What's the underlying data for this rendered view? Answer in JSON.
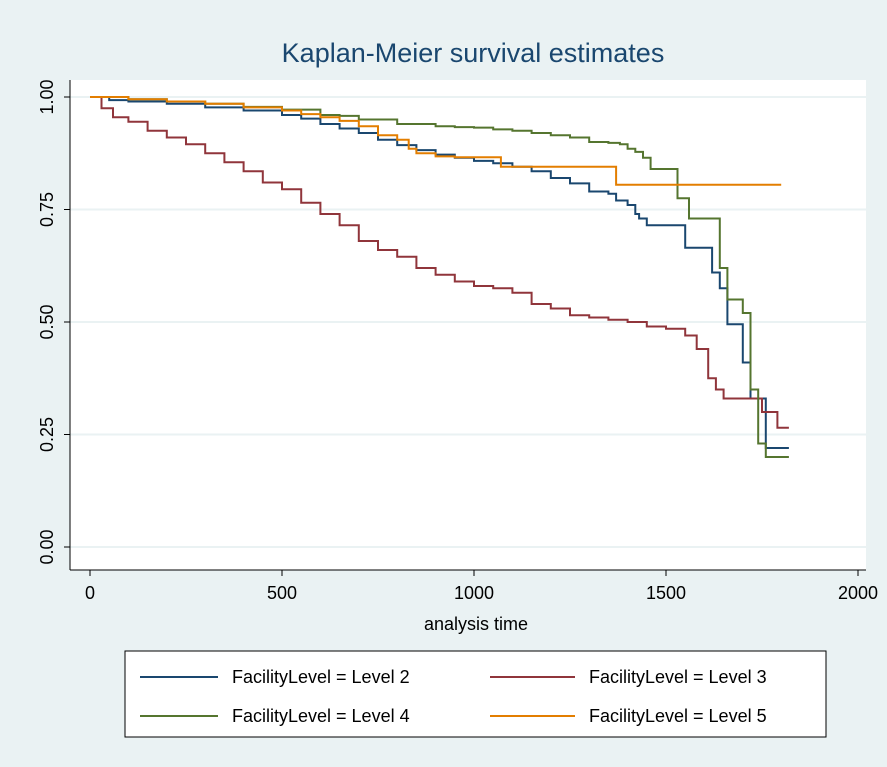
{
  "chart_data": {
    "type": "line",
    "subtype": "step",
    "title": "Kaplan-Meier survival estimates",
    "xlabel": "analysis time",
    "ylabel": "",
    "xlim": [
      0,
      2000
    ],
    "ylim": [
      0,
      1
    ],
    "xticks": [
      0,
      500,
      1000,
      1500,
      2000
    ],
    "xtick_labels": [
      "0",
      "500",
      "1000",
      "1500",
      "2000"
    ],
    "yticks": [
      0,
      0.25,
      0.5,
      0.75,
      1
    ],
    "ytick_labels": [
      "0.00",
      "0.25",
      "0.50",
      "0.75",
      "1.00"
    ],
    "grid": "horizontal",
    "legend_position": "bottom",
    "colors": {
      "background": "#eaf2f3",
      "plot_bg": "#ffffff",
      "gridline": "#eaf2f3"
    },
    "series": [
      {
        "name": "FacilityLevel = Level 2",
        "color": "#1a476f",
        "x": [
          0,
          50,
          100,
          200,
          300,
          400,
          500,
          550,
          600,
          650,
          700,
          750,
          800,
          850,
          900,
          950,
          1000,
          1050,
          1100,
          1150,
          1200,
          1250,
          1300,
          1350,
          1370,
          1400,
          1420,
          1430,
          1450,
          1500,
          1550,
          1600,
          1620,
          1640,
          1660,
          1680,
          1700,
          1720,
          1740,
          1760,
          1780,
          1820
        ],
        "y": [
          1.0,
          0.993,
          0.99,
          0.985,
          0.977,
          0.97,
          0.96,
          0.952,
          0.94,
          0.93,
          0.92,
          0.905,
          0.893,
          0.882,
          0.872,
          0.865,
          0.858,
          0.853,
          0.845,
          0.835,
          0.82,
          0.808,
          0.79,
          0.785,
          0.77,
          0.76,
          0.74,
          0.73,
          0.715,
          0.715,
          0.665,
          0.665,
          0.61,
          0.575,
          0.495,
          0.495,
          0.41,
          0.33,
          0.33,
          0.22,
          0.22,
          0.22
        ]
      },
      {
        "name": "FacilityLevel = Level 3",
        "color": "#90353b",
        "x": [
          0,
          30,
          60,
          100,
          150,
          200,
          250,
          300,
          350,
          400,
          450,
          500,
          550,
          600,
          650,
          700,
          750,
          800,
          850,
          900,
          950,
          1000,
          1050,
          1100,
          1150,
          1200,
          1250,
          1300,
          1350,
          1400,
          1450,
          1500,
          1550,
          1580,
          1600,
          1610,
          1630,
          1650,
          1700,
          1720,
          1750,
          1790,
          1820
        ],
        "y": [
          1.0,
          0.975,
          0.955,
          0.945,
          0.925,
          0.91,
          0.895,
          0.875,
          0.855,
          0.835,
          0.81,
          0.795,
          0.765,
          0.74,
          0.715,
          0.68,
          0.66,
          0.645,
          0.62,
          0.605,
          0.59,
          0.58,
          0.575,
          0.565,
          0.54,
          0.53,
          0.515,
          0.51,
          0.505,
          0.5,
          0.49,
          0.485,
          0.47,
          0.44,
          0.44,
          0.375,
          0.35,
          0.33,
          0.33,
          0.33,
          0.3,
          0.265,
          0.265
        ]
      },
      {
        "name": "FacilityLevel = Level 4",
        "color": "#55752f",
        "x": [
          0,
          100,
          200,
          300,
          400,
          500,
          600,
          650,
          700,
          800,
          850,
          900,
          950,
          1000,
          1050,
          1100,
          1150,
          1200,
          1250,
          1300,
          1350,
          1380,
          1400,
          1420,
          1440,
          1460,
          1480,
          1500,
          1510,
          1520,
          1530,
          1560,
          1600,
          1620,
          1640,
          1660,
          1680,
          1700,
          1720,
          1740,
          1760,
          1820
        ],
        "y": [
          1.0,
          0.995,
          0.99,
          0.985,
          0.978,
          0.972,
          0.96,
          0.958,
          0.95,
          0.94,
          0.94,
          0.935,
          0.933,
          0.932,
          0.928,
          0.925,
          0.92,
          0.915,
          0.91,
          0.9,
          0.898,
          0.895,
          0.885,
          0.878,
          0.865,
          0.84,
          0.84,
          0.84,
          0.84,
          0.84,
          0.775,
          0.73,
          0.73,
          0.73,
          0.62,
          0.55,
          0.55,
          0.52,
          0.35,
          0.23,
          0.2,
          0.2
        ]
      },
      {
        "name": "FacilityLevel = Level 5",
        "color": "#e37e00",
        "x": [
          0,
          100,
          200,
          300,
          400,
          500,
          550,
          600,
          650,
          700,
          750,
          800,
          830,
          850,
          900,
          950,
          1000,
          1050,
          1070,
          1100,
          1200,
          1300,
          1350,
          1370,
          1450,
          1500,
          1600,
          1700,
          1800
        ],
        "y": [
          1.0,
          0.995,
          0.99,
          0.985,
          0.977,
          0.97,
          0.962,
          0.955,
          0.947,
          0.935,
          0.915,
          0.905,
          0.885,
          0.875,
          0.868,
          0.866,
          0.866,
          0.866,
          0.845,
          0.845,
          0.845,
          0.845,
          0.845,
          0.805,
          0.805,
          0.805,
          0.805,
          0.805,
          0.805
        ]
      }
    ]
  }
}
